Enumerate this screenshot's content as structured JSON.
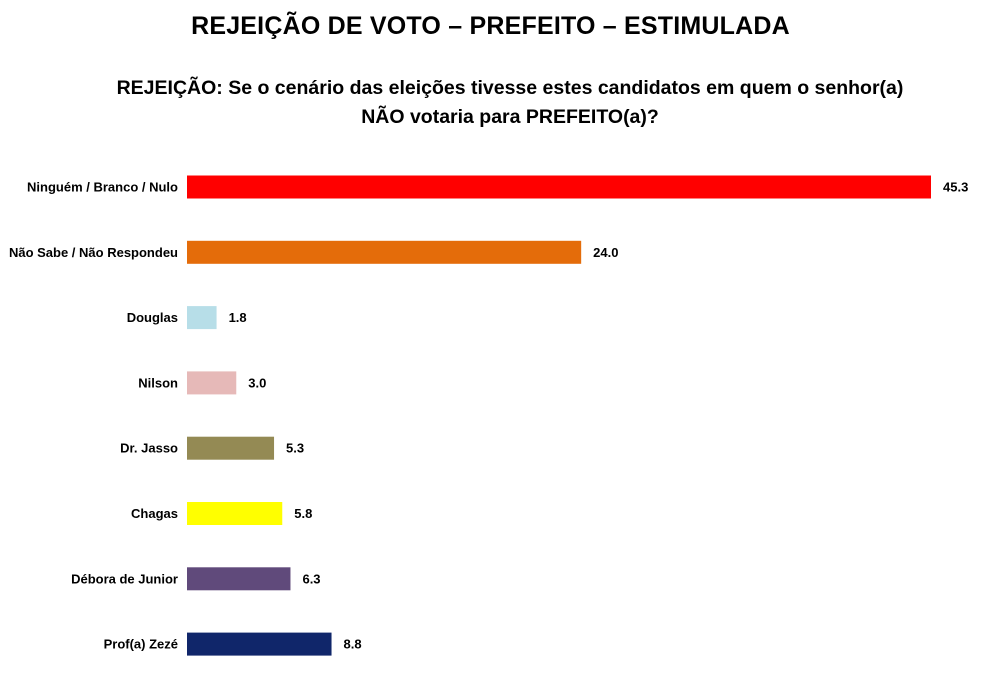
{
  "page": {
    "title": "REJEIÇÃO DE VOTO – PREFEITO – ESTIMULADA",
    "question_line1": "REJEIÇÃO: Se o cenário das eleições tivesse estes candidatos em quem o senhor(a)",
    "question_line2": "NÃO votaria para PREFEITO(a)?"
  },
  "chart_data": {
    "type": "bar",
    "orientation": "horizontal",
    "title": "REJEIÇÃO DE VOTO – PREFEITO – ESTIMULADA",
    "xlabel": "",
    "ylabel": "",
    "xlim": [
      0,
      45.3
    ],
    "grid": false,
    "categories": [
      "Ninguém / Branco / Nulo",
      "Não Sabe / Não Respondeu",
      "Douglas",
      "Nilson",
      "Dr. Jasso",
      "Chagas",
      "Débora de Junior",
      "Prof(a) Zezé"
    ],
    "values": [
      45.3,
      24.0,
      1.8,
      3.0,
      5.3,
      5.8,
      6.3,
      8.8
    ],
    "value_labels": [
      "45.3",
      "24.0",
      "1.8",
      "3.0",
      "5.3",
      "5.8",
      "6.3",
      "8.8"
    ],
    "colors": [
      "#ff0000",
      "#e46c0a",
      "#b7dee8",
      "#e6b9b8",
      "#948a54",
      "#ffff00",
      "#604a7b",
      "#10266a"
    ]
  }
}
